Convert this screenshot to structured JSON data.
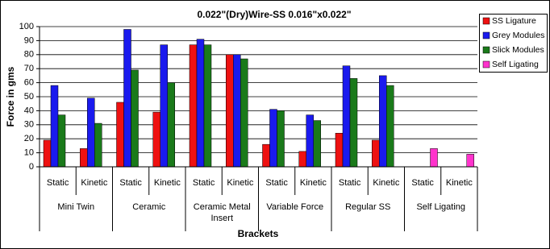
{
  "chart_data": {
    "type": "bar",
    "title": "0.022\"(Dry)Wire-SS 0.016\"x0.022\"",
    "y_label": "Force in gms",
    "x_label": "Brackets",
    "categories": [
      "Static",
      "Kinetic",
      "Static",
      "Kinetic",
      "Static",
      "Kinetic",
      "Static",
      "Kinetic",
      "Static",
      "Kinetic",
      "Static",
      "Kinetic"
    ],
    "groups": [
      "Mini Twin",
      "Ceramic",
      "Ceramic Metal Insert",
      "Variable Force",
      "Regular SS",
      "Self Ligating"
    ],
    "series": [
      {
        "name": "SS  Ligature",
        "color": "#ee1111",
        "values": [
          19,
          13,
          46,
          39,
          87,
          80,
          16,
          11,
          24,
          19,
          null,
          null
        ]
      },
      {
        "name": "Grey Modules",
        "color": "#1a1aee",
        "values": [
          58,
          49,
          98,
          87,
          91,
          80,
          41,
          37,
          72,
          65,
          null,
          null
        ]
      },
      {
        "name": "Slick Modules",
        "color": "#1a7a1a",
        "values": [
          37,
          31,
          69,
          60,
          87,
          77,
          40,
          33,
          63,
          58,
          null,
          null
        ]
      },
      {
        "name": "Self Ligating",
        "color": "#ff33cc",
        "values": [
          null,
          null,
          null,
          null,
          null,
          null,
          null,
          null,
          null,
          null,
          13,
          9
        ]
      }
    ],
    "ylim": [
      0,
      100
    ],
    "yticks": [
      0,
      10,
      20,
      30,
      40,
      50,
      60,
      70,
      80,
      90,
      100
    ],
    "grid": true,
    "legend": "right"
  }
}
